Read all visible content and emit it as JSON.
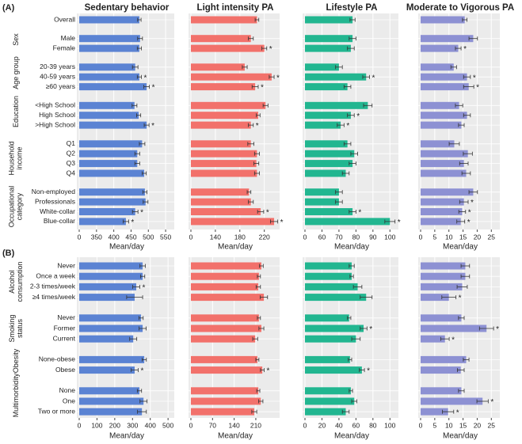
{
  "chart_data": [
    {
      "type": "bar",
      "label": "(A)",
      "groups": [
        {
          "categories": [
            "Overall"
          ]
        },
        {
          "label": "Sex",
          "categories": [
            "Male",
            "Female"
          ]
        },
        {
          "label": "Age group",
          "categories": [
            "20-39 years",
            "40-59 years",
            "≥60 years"
          ]
        },
        {
          "label": "Education",
          "categories": [
            "<High School",
            "High School",
            ">High School"
          ]
        },
        {
          "label": "Household income",
          "categories": [
            "Q1",
            "Q2",
            "Q3",
            "Q4"
          ]
        },
        {
          "label": "Occupational category",
          "categories": [
            "Non-employed",
            "Professionals",
            "White-collar",
            "Blue-collar"
          ]
        }
      ],
      "subplots": [
        {
          "title": "Sedentary behavior",
          "xlabel": "Mean/day",
          "color": "#5b83d3",
          "broken_axis": true,
          "xlim": [
            0,
            575
          ],
          "xticks": [
            0,
            350,
            400,
            450,
            500,
            550
          ],
          "values": [
            474,
            476,
            474,
            462,
            474,
            495,
            460,
            472,
            495,
            482,
            468,
            468,
            488,
            490,
            492,
            462,
            435
          ],
          "errors": [
            5,
            7,
            6,
            8,
            6,
            8,
            7,
            6,
            7,
            8,
            7,
            7,
            6,
            6,
            7,
            8,
            8
          ],
          "annotations": [
            null,
            null,
            null,
            null,
            "*",
            "*",
            null,
            null,
            "*",
            null,
            null,
            null,
            null,
            null,
            null,
            "*",
            "*"
          ]
        },
        {
          "title": "Light intensity PA",
          "xlabel": "Mean/day",
          "color": "#f2716b",
          "broken_axis": true,
          "xlim": [
            0,
            245
          ],
          "xticks": [
            0,
            140,
            180,
            220
          ],
          "values": [
            208,
            198,
            220,
            188,
            232,
            205,
            222,
            210,
            198,
            198,
            208,
            207,
            208,
            195,
            198,
            214,
            236
          ],
          "errors": [
            3,
            4,
            4,
            4,
            4,
            5,
            4,
            3,
            4,
            5,
            4,
            4,
            4,
            3,
            4,
            5,
            6
          ],
          "annotations": [
            null,
            null,
            "*",
            null,
            "*",
            "*",
            null,
            null,
            "*",
            null,
            null,
            null,
            null,
            null,
            null,
            "*",
            "*"
          ]
        },
        {
          "title": "Lifestyle PA",
          "xlabel": "Mean/day",
          "color": "#22b690",
          "broken_axis": true,
          "xlim": [
            0,
            105
          ],
          "xticks": [
            0,
            60,
            70,
            80,
            90,
            100
          ],
          "values": [
            78,
            78,
            77,
            70,
            86,
            75,
            87,
            77,
            71,
            75,
            79,
            78,
            74,
            70,
            70,
            78,
            100
          ],
          "errors": [
            1.5,
            2,
            2,
            2,
            2,
            2,
            2.5,
            2,
            2,
            2,
            2,
            2,
            2,
            2,
            2,
            2,
            3
          ],
          "annotations": [
            null,
            null,
            null,
            null,
            "*",
            null,
            null,
            "*",
            "*",
            null,
            null,
            null,
            null,
            null,
            null,
            "*",
            "*"
          ]
        },
        {
          "title": "Moderate to Vigorous PA",
          "xlabel": "Mean/day",
          "color": "#8d91d3",
          "xlim": [
            0,
            28
          ],
          "xticks": [
            0,
            5,
            10,
            15,
            20,
            25
          ],
          "values": [
            15.6,
            18.6,
            13.3,
            11.7,
            16.4,
            17,
            13.6,
            16.4,
            14.4,
            11.9,
            16.7,
            15.3,
            16.1,
            18.6,
            15.3,
            14.7,
            14.2
          ],
          "errors": [
            0.8,
            1.5,
            1,
            1,
            1.2,
            1.8,
            1.3,
            1.2,
            1,
            1.8,
            1.6,
            1.5,
            1.5,
            1.5,
            1.5,
            1.2,
            1.4
          ],
          "annotations": [
            null,
            null,
            "*",
            null,
            "*",
            "*",
            null,
            null,
            null,
            null,
            null,
            null,
            null,
            null,
            "*",
            "*",
            "*"
          ]
        }
      ]
    },
    {
      "type": "bar",
      "label": "(B)",
      "groups": [
        {
          "label": "Alcohol consumption",
          "categories": [
            "Never",
            "Once a week",
            "2-3 times/week",
            "≥4 times/week"
          ]
        },
        {
          "label": "Smoking status",
          "categories": [
            "Never",
            "Former",
            "Current"
          ]
        },
        {
          "label": "Obesity",
          "categories": [
            "None-obese",
            "Obese"
          ]
        },
        {
          "label": "Multimorbidity",
          "categories": [
            "None",
            "One",
            "Two or more"
          ]
        }
      ],
      "subplots": [
        {
          "xlabel": "Mean/day",
          "color": "#5b83d3",
          "xlim": [
            0,
            535
          ],
          "xticks": [
            0,
            100,
            200,
            300,
            400,
            500
          ],
          "values": [
            357,
            357,
            321,
            312,
            348,
            357,
            304,
            366,
            312,
            339,
            362,
            353
          ],
          "errors": [
            15,
            12,
            20,
            45,
            12,
            20,
            20,
            12,
            20,
            12,
            20,
            25
          ],
          "annotations": [
            null,
            null,
            "*",
            null,
            null,
            null,
            null,
            null,
            "*",
            null,
            null,
            null
          ]
        },
        {
          "xlabel": "Mean/day",
          "color": "#f2716b",
          "xlim": [
            0,
            287
          ],
          "xticks": [
            0,
            70,
            140,
            210
          ],
          "values": [
            228,
            220,
            218,
            236,
            220,
            228,
            208,
            215,
            231,
            218,
            226,
            205
          ],
          "errors": [
            6,
            5,
            7,
            12,
            5,
            8,
            8,
            5,
            6,
            5,
            7,
            8
          ],
          "annotations": [
            null,
            null,
            null,
            null,
            null,
            null,
            null,
            null,
            "*",
            null,
            null,
            null
          ]
        },
        {
          "xlabel": "Mean/day",
          "color": "#22b690",
          "xlim": [
            0,
            110
          ],
          "xticks": [
            0,
            20,
            40,
            60,
            80,
            100
          ],
          "values": [
            55,
            55,
            62,
            72,
            52,
            69,
            60,
            53,
            67,
            54,
            58,
            48
          ],
          "errors": [
            3,
            2,
            5,
            7,
            2,
            4,
            5,
            2,
            3,
            2,
            3,
            4
          ],
          "annotations": [
            null,
            null,
            null,
            null,
            null,
            "*",
            null,
            null,
            "*",
            null,
            null,
            null
          ]
        },
        {
          "xlabel": "Mean/day",
          "color": "#8d91d3",
          "xlim": [
            0,
            28
          ],
          "xticks": [
            0,
            5,
            10,
            15,
            20,
            25
          ],
          "values": [
            15.8,
            15.8,
            14.7,
            10,
            14.4,
            23.3,
            8.6,
            16.1,
            14.2,
            14.4,
            21.9,
            9.7
          ],
          "errors": [
            1.5,
            1.5,
            1.8,
            2.5,
            1,
            2.5,
            1.5,
            1,
            1.2,
            1,
            2,
            2
          ],
          "annotations": [
            null,
            null,
            null,
            "*",
            null,
            "*",
            "*",
            null,
            null,
            null,
            "*",
            "*"
          ]
        }
      ]
    }
  ]
}
